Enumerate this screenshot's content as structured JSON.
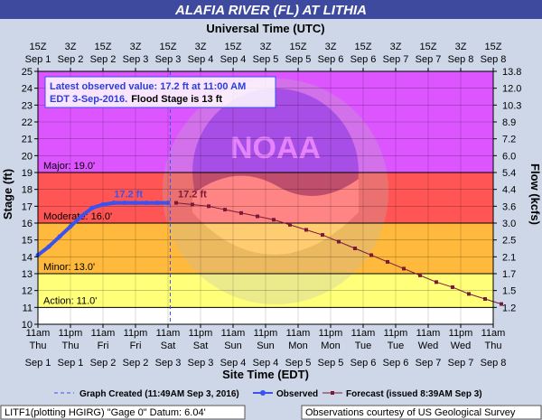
{
  "chart_data": {
    "type": "line",
    "title": "ALAFIA RIVER (FL) AT LITHIA",
    "top_axis_title": "Universal Time (UTC)",
    "bottom_axis_title": "Site Time (EDT)",
    "ylabel": "Stage (ft)",
    "y2label": "Flow (kcfs)",
    "ylim": [
      10,
      25
    ],
    "y_ticks": [
      "10",
      "11",
      "12",
      "13",
      "14",
      "15",
      "16",
      "17",
      "18",
      "19",
      "20",
      "21",
      "22",
      "23",
      "24",
      "25"
    ],
    "flow_ticks": [
      {
        "stage": 11,
        "label": "1.2"
      },
      {
        "stage": 12,
        "label": "1.5"
      },
      {
        "stage": 13,
        "label": "1.7"
      },
      {
        "stage": 14,
        "label": "2.1"
      },
      {
        "stage": 15,
        "label": "2.5"
      },
      {
        "stage": 16,
        "label": "3.0"
      },
      {
        "stage": 17,
        "label": "3.6"
      },
      {
        "stage": 18,
        "label": "4.4"
      },
      {
        "stage": 19,
        "label": "5.4"
      },
      {
        "stage": 20,
        "label": "6.0"
      },
      {
        "stage": 21,
        "label": "7.2"
      },
      {
        "stage": 22,
        "label": "8.9"
      },
      {
        "stage": 23,
        "label": "10.3"
      },
      {
        "stage": 24,
        "label": "12.0"
      },
      {
        "stage": 25,
        "label": "13.8"
      }
    ],
    "x_ticks_bottom": [
      {
        "l1": "11am",
        "l2": "Thu",
        "l3": "Sep 1"
      },
      {
        "l1": "11pm",
        "l2": "Thu",
        "l3": "Sep 1"
      },
      {
        "l1": "11am",
        "l2": "Fri",
        "l3": "Sep 2"
      },
      {
        "l1": "11pm",
        "l2": "Fri",
        "l3": "Sep 2"
      },
      {
        "l1": "11am",
        "l2": "Sat",
        "l3": "Sep 3"
      },
      {
        "l1": "11pm",
        "l2": "Sat",
        "l3": "Sep 3"
      },
      {
        "l1": "11am",
        "l2": "Sun",
        "l3": "Sep 4"
      },
      {
        "l1": "11pm",
        "l2": "Sun",
        "l3": "Sep 4"
      },
      {
        "l1": "11am",
        "l2": "Mon",
        "l3": "Sep 5"
      },
      {
        "l1": "11pm",
        "l2": "Mon",
        "l3": "Sep 5"
      },
      {
        "l1": "11am",
        "l2": "Tue",
        "l3": "Sep 6"
      },
      {
        "l1": "11pm",
        "l2": "Tue",
        "l3": "Sep 6"
      },
      {
        "l1": "11am",
        "l2": "Wed",
        "l3": "Sep 7"
      },
      {
        "l1": "11pm",
        "l2": "Wed",
        "l3": "Sep 7"
      },
      {
        "l1": "11am",
        "l2": "Thu",
        "l3": "Sep 8"
      }
    ],
    "x_ticks_top": [
      {
        "l1": "15Z",
        "l2": "Sep 1"
      },
      {
        "l1": "3Z",
        "l2": "Sep 2"
      },
      {
        "l1": "15Z",
        "l2": "Sep 2"
      },
      {
        "l1": "3Z",
        "l2": "Sep 3"
      },
      {
        "l1": "15Z",
        "l2": "Sep 3"
      },
      {
        "l1": "3Z",
        "l2": "Sep 4"
      },
      {
        "l1": "15Z",
        "l2": "Sep 4"
      },
      {
        "l1": "3Z",
        "l2": "Sep 5"
      },
      {
        "l1": "15Z",
        "l2": "Sep 5"
      },
      {
        "l1": "3Z",
        "l2": "Sep 6"
      },
      {
        "l1": "15Z",
        "l2": "Sep 6"
      },
      {
        "l1": "3Z",
        "l2": "Sep 7"
      },
      {
        "l1": "15Z",
        "l2": "Sep 7"
      },
      {
        "l1": "3Z",
        "l2": "Sep 8"
      },
      {
        "l1": "15Z",
        "l2": "Sep 8"
      }
    ],
    "flood_categories": [
      {
        "name": "Action",
        "label": "Action: 11.0'",
        "from": 11,
        "to": 13,
        "color": "#ffff7a"
      },
      {
        "name": "Minor",
        "label": "Minor: 13.0'",
        "from": 13,
        "to": 16,
        "color": "#ffb93c"
      },
      {
        "name": "Moderate",
        "label": "Moderate: 16.0'",
        "from": 16,
        "to": 19,
        "color": "#ff5555"
      },
      {
        "name": "Major",
        "label": "Major: 19.0'",
        "from": 19,
        "to": 25,
        "color": "#dd55ff"
      }
    ],
    "observed": {
      "name": "Observed",
      "color": "#3a52ee",
      "peak_label": "17.2 ft",
      "points": [
        {
          "x": "Sep 1 11am",
          "y": 14.1
        },
        {
          "x": "Sep 1 3pm",
          "y": 14.6
        },
        {
          "x": "Sep 1 7pm",
          "y": 15.2
        },
        {
          "x": "Sep 1 11pm",
          "y": 15.8
        },
        {
          "x": "Sep 2 3am",
          "y": 16.4
        },
        {
          "x": "Sep 2 7am",
          "y": 16.9
        },
        {
          "x": "Sep 2 11am",
          "y": 17.1
        },
        {
          "x": "Sep 2 3pm",
          "y": 17.2
        },
        {
          "x": "Sep 2 7pm",
          "y": 17.2
        },
        {
          "x": "Sep 2 11pm",
          "y": 17.2
        },
        {
          "x": "Sep 3 3am",
          "y": 17.2
        },
        {
          "x": "Sep 3 7am",
          "y": 17.2
        },
        {
          "x": "Sep 3 11am",
          "y": 17.2
        }
      ]
    },
    "forecast": {
      "name": "Forecast (issued 8:39AM Sep 3)",
      "color": "#7a1a3a",
      "peak_label": "17.2 ft",
      "points": [
        {
          "x": "Sep 3 2pm",
          "y": 17.2
        },
        {
          "x": "Sep 3 8pm",
          "y": 17.1
        },
        {
          "x": "Sep 4 2am",
          "y": 17.0
        },
        {
          "x": "Sep 4 8am",
          "y": 16.8
        },
        {
          "x": "Sep 4 2pm",
          "y": 16.6
        },
        {
          "x": "Sep 4 8pm",
          "y": 16.4
        },
        {
          "x": "Sep 5 2am",
          "y": 16.2
        },
        {
          "x": "Sep 5 8am",
          "y": 15.9
        },
        {
          "x": "Sep 5 2pm",
          "y": 15.6
        },
        {
          "x": "Sep 5 8pm",
          "y": 15.3
        },
        {
          "x": "Sep 6 2am",
          "y": 14.9
        },
        {
          "x": "Sep 6 8am",
          "y": 14.5
        },
        {
          "x": "Sep 6 2pm",
          "y": 14.1
        },
        {
          "x": "Sep 6 8pm",
          "y": 13.7
        },
        {
          "x": "Sep 7 2am",
          "y": 13.3
        },
        {
          "x": "Sep 7 8am",
          "y": 12.9
        },
        {
          "x": "Sep 7 2pm",
          "y": 12.5
        },
        {
          "x": "Sep 7 8pm",
          "y": 12.2
        },
        {
          "x": "Sep 8 2am",
          "y": 11.8
        },
        {
          "x": "Sep 8 8am",
          "y": 11.5
        },
        {
          "x": "Sep 8 2pm",
          "y": 11.2
        }
      ]
    },
    "graph_created": {
      "x": "Sep 3 11:49am",
      "label": "Graph Created (11:49AM Sep 3, 2016)"
    },
    "info_box": {
      "line1": "Latest observed value: 17.2 ft at 11:00 AM",
      "line2a": "EDT 3-Sep-2016.",
      "line2b": "Flood Stage is 13 ft"
    },
    "legend": {
      "graph_created": "Graph Created (11:49AM Sep 3, 2016)",
      "observed": "Observed",
      "forecast": "Forecast (issued 8:39AM Sep 3)"
    },
    "footer": {
      "left": "LITF1(plotting HGIRG) \"Gage 0\" Datum: 6.04'",
      "right": "Observations courtesy of US Geological Survey"
    },
    "colors": {
      "title_bar": "#3d4a9e",
      "background": "#cdd7e8",
      "above_major": "#dd55ff",
      "grid_line": "#000000"
    }
  }
}
